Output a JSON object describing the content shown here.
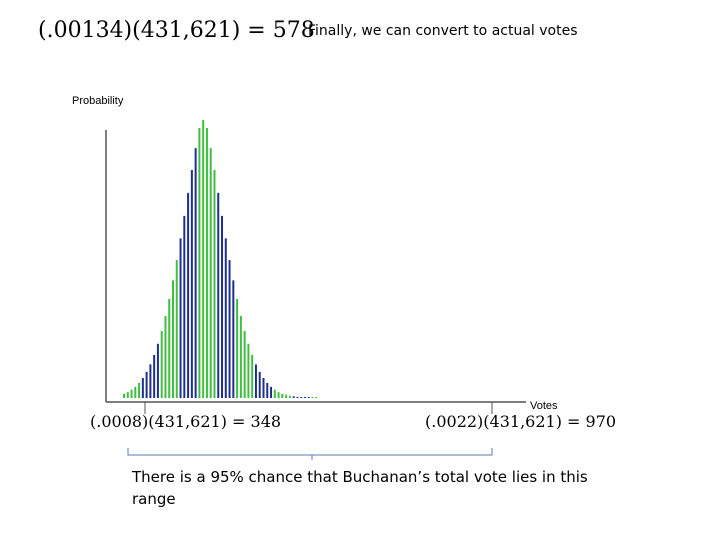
{
  "slide": {
    "heading": "Finally, we can convert to actual votes",
    "equation_top": "(.00134)(431,621) = 578",
    "equation_left": "(.0008)(431,621) = 348",
    "equation_right": "(.0022)(431,621) = 970",
    "caption": "There is a 95% chance that Buchanan’s total vote lies in this range"
  },
  "colors": {
    "green": "#3fbf3f",
    "blue": "#1f2f8f",
    "axis": "#555555",
    "bracket": "#5b7fae"
  },
  "chart_data": {
    "type": "bar",
    "title": "",
    "xlabel": "Votes",
    "ylabel": "Probability",
    "grid": false,
    "ylim": [
      0,
      1
    ],
    "color_pattern": "bars alternate in groups of five: green, blue, green, blue",
    "series": [
      {
        "name": "Probability",
        "values": [
          0.015,
          0.021,
          0.03,
          0.04,
          0.054,
          0.072,
          0.094,
          0.121,
          0.155,
          0.195,
          0.241,
          0.295,
          0.356,
          0.423,
          0.496,
          0.574,
          0.655,
          0.738,
          0.82,
          0.899,
          0.971,
          1,
          0.971,
          0.899,
          0.82,
          0.738,
          0.655,
          0.574,
          0.496,
          0.423,
          0.356,
          0.295,
          0.241,
          0.195,
          0.155,
          0.121,
          0.094,
          0.072,
          0.054,
          0.04,
          0.03,
          0.021,
          0.015,
          0.011,
          0.008,
          0.006,
          0.004,
          0.003,
          0.002,
          0.001,
          0.001,
          0.0
        ]
      }
    ]
  }
}
